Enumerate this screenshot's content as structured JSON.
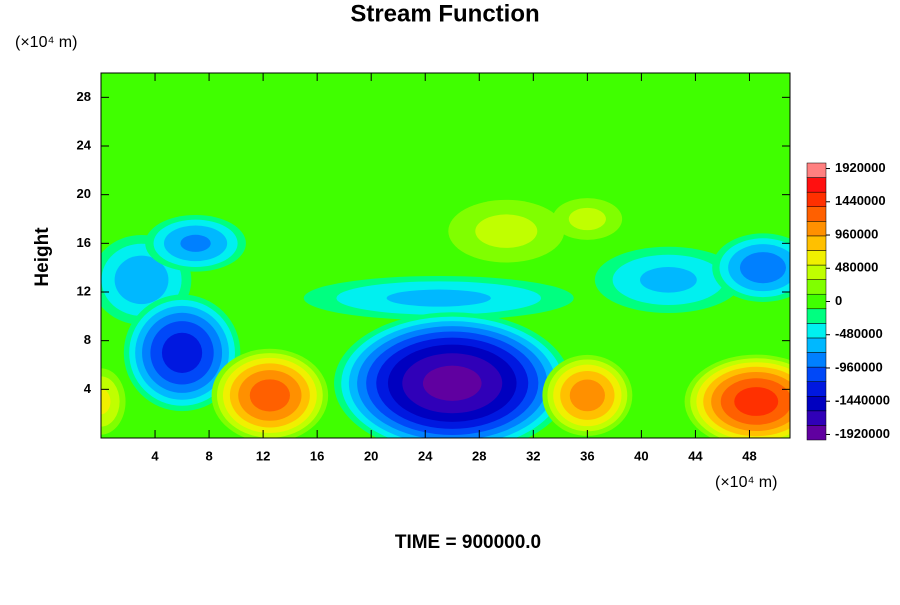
{
  "chart_data": {
    "type": "contour",
    "title": "Stream Function",
    "y_label": "Height",
    "y_unit": "(×10⁴ m)",
    "x_unit": "(×10⁴ m)",
    "footer": "TIME = 900000.0",
    "xlim": [
      0,
      51
    ],
    "ylim": [
      0,
      30
    ],
    "xticks": [
      4,
      8,
      12,
      16,
      20,
      24,
      28,
      32,
      36,
      40,
      44,
      48
    ],
    "yticks": [
      4,
      8,
      12,
      16,
      20,
      24,
      28
    ],
    "clim": [
      -2000000,
      2000000
    ],
    "cticks": [
      -1920000,
      -1440000,
      -960000,
      -480000,
      0,
      480000,
      960000,
      1440000,
      1920000
    ],
    "colors": [
      "#6000a0",
      "#3000b8",
      "#0000c0",
      "#0018e0",
      "#0048f8",
      "#0080ff",
      "#00b8ff",
      "#00f0f0",
      "#00ff80",
      "#40ff00",
      "#80ff00",
      "#c0ff00",
      "#f0f000",
      "#ffc000",
      "#ff9000",
      "#ff6000",
      "#ff3000",
      "#ff1010",
      "#ff8080"
    ],
    "background": 0,
    "features": [
      {
        "x": 25,
        "y": 11.5,
        "rx": 11,
        "ry": 2,
        "value": -600000
      },
      {
        "x": 42,
        "y": 13,
        "rx": 6,
        "ry": 3,
        "value": -600000
      },
      {
        "x": 3,
        "y": 13,
        "rx": 4,
        "ry": 4,
        "value": -700000
      },
      {
        "x": 30,
        "y": 17,
        "rx": 5,
        "ry": 3,
        "value": 400000
      },
      {
        "x": 36,
        "y": 18,
        "rx": 3,
        "ry": 2,
        "value": 400000
      },
      {
        "x": 7,
        "y": 16,
        "rx": 4,
        "ry": 2.5,
        "value": -800000
      },
      {
        "x": 49,
        "y": 14,
        "rx": 4,
        "ry": 3,
        "value": -900000
      },
      {
        "x": 0,
        "y": 3,
        "rx": 2,
        "ry": 3,
        "value": 600000
      },
      {
        "x": 6,
        "y": 7,
        "rx": 4.5,
        "ry": 5,
        "value": -1300000
      },
      {
        "x": 26,
        "y": 4.5,
        "rx": 9,
        "ry": 6,
        "value": -1900000
      },
      {
        "x": 12.5,
        "y": 3.5,
        "rx": 4.5,
        "ry": 4,
        "value": 1300000
      },
      {
        "x": 36,
        "y": 3.5,
        "rx": 3.5,
        "ry": 3.5,
        "value": 1100000
      },
      {
        "x": 48.5,
        "y": 3,
        "rx": 5.5,
        "ry": 4,
        "value": 1500000
      }
    ]
  }
}
